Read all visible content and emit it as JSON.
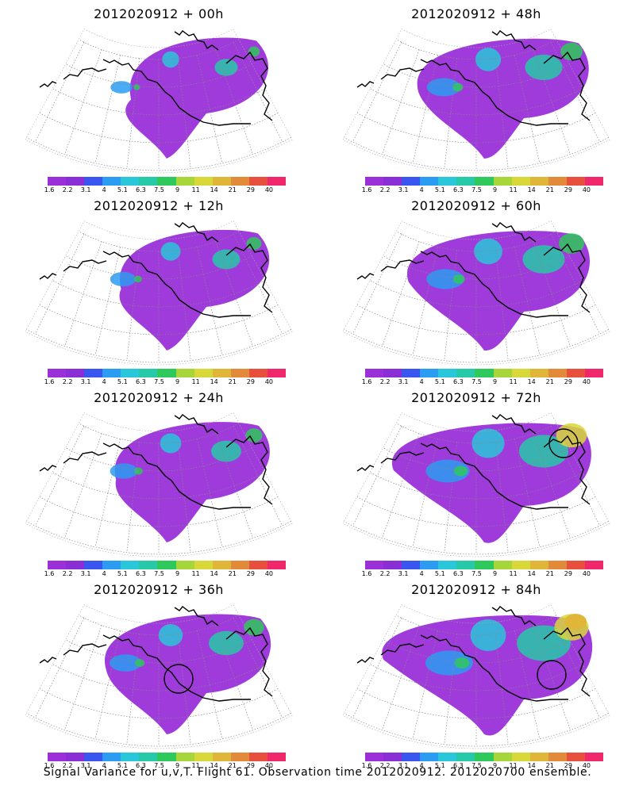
{
  "panels": [
    {
      "title": "2012020912 + 00h",
      "intensity": 0.15,
      "circles": []
    },
    {
      "title": "2012020912 + 48h",
      "intensity": 0.45,
      "circles": []
    },
    {
      "title": "2012020912 + 12h",
      "intensity": 0.25,
      "circles": []
    },
    {
      "title": "2012020912 + 60h",
      "intensity": 0.55,
      "circles": []
    },
    {
      "title": "2012020912 + 24h",
      "intensity": 0.3,
      "circles": []
    },
    {
      "title": "2012020912 + 72h",
      "intensity": 0.7,
      "circles": [
        "upper-right"
      ]
    },
    {
      "title": "2012020912 + 36h",
      "intensity": 0.4,
      "circles": [
        "center"
      ]
    },
    {
      "title": "2012020912 + 84h",
      "intensity": 0.8,
      "circles": [
        "right"
      ]
    }
  ],
  "colorbar": {
    "labels": [
      "1.6",
      "2.2",
      "3.1",
      "4",
      "5.1",
      "6.3",
      "7.5",
      "9",
      "11",
      "14",
      "21",
      "29",
      "40"
    ],
    "colors": [
      "#9b30d9",
      "#8a2fd6",
      "#3a55f0",
      "#2b9cf2",
      "#29c7d9",
      "#26c9a8",
      "#2ec95a",
      "#a7d63a",
      "#d8d83a",
      "#e0b638",
      "#e28a3a",
      "#e8503e",
      "#f0286b"
    ]
  },
  "caption": "Signal Variance for u,v,T. Flight 61. Observation time 2012020912. 2012020700 ensemble."
}
